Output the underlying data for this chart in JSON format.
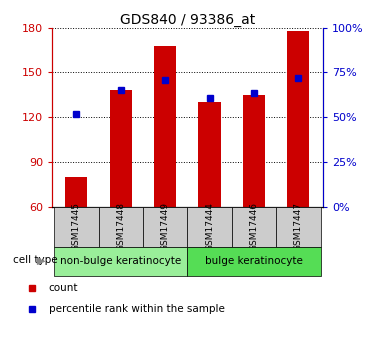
{
  "title": "GDS840 / 93386_at",
  "samples": [
    "GSM17445",
    "GSM17448",
    "GSM17449",
    "GSM17444",
    "GSM17446",
    "GSM17447"
  ],
  "count_values": [
    80,
    138,
    168,
    130,
    135,
    178
  ],
  "percentile_values": [
    122,
    138,
    145,
    133,
    136,
    146
  ],
  "y_min": 60,
  "y_max": 180,
  "y_ticks": [
    60,
    90,
    120,
    150,
    180
  ],
  "bar_color": "#cc0000",
  "dot_color": "#0000cc",
  "groups": [
    {
      "label": "non-bulge keratinocyte",
      "indices": [
        0,
        1,
        2
      ],
      "color": "#99ee99"
    },
    {
      "label": "bulge keratinocyte",
      "indices": [
        3,
        4,
        5
      ],
      "color": "#55dd55"
    }
  ],
  "cell_type_label": "cell type",
  "legend_items": [
    {
      "label": "count",
      "color": "#cc0000"
    },
    {
      "label": "percentile rank within the sample",
      "color": "#0000cc"
    }
  ],
  "background_color": "#ffffff",
  "tick_label_color_left": "#cc0000",
  "tick_label_color_right": "#0000cc",
  "bar_width": 0.5,
  "right_labels": [
    "0%",
    "25%",
    "50%",
    "75%",
    "100%"
  ]
}
